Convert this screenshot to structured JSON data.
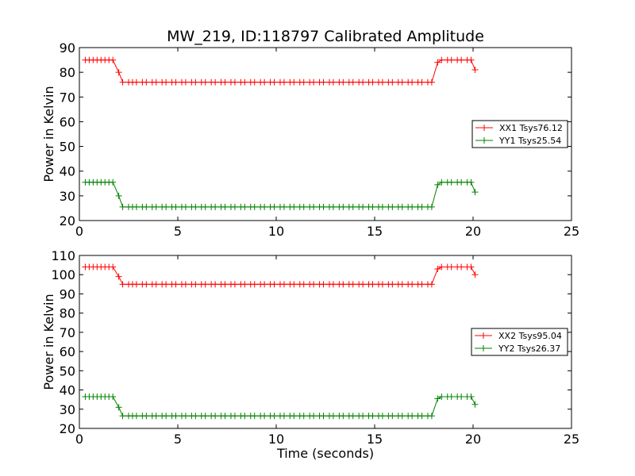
{
  "figure": {
    "title": "MW_219, ID:118797 Calibrated Amplitude"
  },
  "colors": {
    "red": "#ff0000",
    "green": "#008000",
    "axis": "#000000"
  },
  "chart_data": [
    {
      "type": "line",
      "xlabel": "",
      "ylabel": "Power in Kelvin",
      "xlim": [
        0,
        25
      ],
      "ylim": [
        20,
        90
      ],
      "xticks": [
        0,
        5,
        10,
        15,
        20,
        25
      ],
      "yticks": [
        20,
        30,
        40,
        50,
        60,
        70,
        80,
        90
      ],
      "legend_position": "center-right",
      "series": [
        {
          "name": "XX1 Tsys76.12",
          "color": "#ff0000",
          "x": [
            0.3,
            0.5,
            0.7,
            0.9,
            1.1,
            1.3,
            1.5,
            1.7,
            2.0,
            2.2,
            2.5,
            2.7,
            2.9,
            3.2,
            3.4,
            3.7,
            3.9,
            4.2,
            4.4,
            4.7,
            4.9,
            5.2,
            5.4,
            5.7,
            5.9,
            6.2,
            6.4,
            6.7,
            6.9,
            7.2,
            7.4,
            7.7,
            7.9,
            8.2,
            8.4,
            8.7,
            8.9,
            9.2,
            9.4,
            9.7,
            9.9,
            10.2,
            10.4,
            10.7,
            10.9,
            11.2,
            11.4,
            11.7,
            11.9,
            12.2,
            12.4,
            12.7,
            12.9,
            13.2,
            13.4,
            13.7,
            13.9,
            14.2,
            14.4,
            14.7,
            14.9,
            15.2,
            15.4,
            15.7,
            15.9,
            16.2,
            16.4,
            16.7,
            16.9,
            17.2,
            17.4,
            17.7,
            17.9,
            18.2,
            18.4,
            18.7,
            18.9,
            19.2,
            19.4,
            19.7,
            19.9,
            20.1
          ],
          "values": [
            85,
            85,
            85,
            85,
            85,
            85,
            85,
            85,
            80,
            76,
            76,
            76,
            76,
            76,
            76,
            76,
            76,
            76,
            76,
            76,
            76,
            76,
            76,
            76,
            76,
            76,
            76,
            76,
            76,
            76,
            76,
            76,
            76,
            76,
            76,
            76,
            76,
            76,
            76,
            76,
            76,
            76,
            76,
            76,
            76,
            76,
            76,
            76,
            76,
            76,
            76,
            76,
            76,
            76,
            76,
            76,
            76,
            76,
            76,
            76,
            76,
            76,
            76,
            76,
            76,
            76,
            76,
            76,
            76,
            76,
            76,
            76,
            76,
            84,
            85,
            85,
            85,
            85,
            85,
            85,
            85,
            81
          ]
        },
        {
          "name": "YY1 Tsys25.54",
          "color": "#008000",
          "x": [
            0.3,
            0.5,
            0.7,
            0.9,
            1.1,
            1.3,
            1.5,
            1.7,
            2.0,
            2.2,
            2.5,
            2.7,
            2.9,
            3.2,
            3.4,
            3.7,
            3.9,
            4.2,
            4.4,
            4.7,
            4.9,
            5.2,
            5.4,
            5.7,
            5.9,
            6.2,
            6.4,
            6.7,
            6.9,
            7.2,
            7.4,
            7.7,
            7.9,
            8.2,
            8.4,
            8.7,
            8.9,
            9.2,
            9.4,
            9.7,
            9.9,
            10.2,
            10.4,
            10.7,
            10.9,
            11.2,
            11.4,
            11.7,
            11.9,
            12.2,
            12.4,
            12.7,
            12.9,
            13.2,
            13.4,
            13.7,
            13.9,
            14.2,
            14.4,
            14.7,
            14.9,
            15.2,
            15.4,
            15.7,
            15.9,
            16.2,
            16.4,
            16.7,
            16.9,
            17.2,
            17.4,
            17.7,
            17.9,
            18.2,
            18.4,
            18.7,
            18.9,
            19.2,
            19.4,
            19.7,
            19.9,
            20.1
          ],
          "values": [
            35.5,
            35.5,
            35.5,
            35.5,
            35.5,
            35.5,
            35.5,
            35.5,
            30,
            25.5,
            25.5,
            25.5,
            25.5,
            25.5,
            25.5,
            25.5,
            25.5,
            25.5,
            25.5,
            25.5,
            25.5,
            25.5,
            25.5,
            25.5,
            25.5,
            25.5,
            25.5,
            25.5,
            25.5,
            25.5,
            25.5,
            25.5,
            25.5,
            25.5,
            25.5,
            25.5,
            25.5,
            25.5,
            25.5,
            25.5,
            25.5,
            25.5,
            25.5,
            25.5,
            25.5,
            25.5,
            25.5,
            25.5,
            25.5,
            25.5,
            25.5,
            25.5,
            25.5,
            25.5,
            25.5,
            25.5,
            25.5,
            25.5,
            25.5,
            25.5,
            25.5,
            25.5,
            25.5,
            25.5,
            25.5,
            25.5,
            25.5,
            25.5,
            25.5,
            25.5,
            25.5,
            25.5,
            25.5,
            34.5,
            35.5,
            35.5,
            35.5,
            35.5,
            35.5,
            35.5,
            35.5,
            31.5
          ]
        }
      ]
    },
    {
      "type": "line",
      "xlabel": "Time (seconds)",
      "ylabel": "Power in Kelvin",
      "xlim": [
        0,
        25
      ],
      "ylim": [
        20,
        110
      ],
      "xticks": [
        0,
        5,
        10,
        15,
        20,
        25
      ],
      "yticks": [
        20,
        30,
        40,
        50,
        60,
        70,
        80,
        90,
        100,
        110
      ],
      "legend_position": "center-right",
      "series": [
        {
          "name": "XX2 Tsys95.04",
          "color": "#ff0000",
          "x": [
            0.3,
            0.5,
            0.7,
            0.9,
            1.1,
            1.3,
            1.5,
            1.7,
            2.0,
            2.2,
            2.5,
            2.7,
            2.9,
            3.2,
            3.4,
            3.7,
            3.9,
            4.2,
            4.4,
            4.7,
            4.9,
            5.2,
            5.4,
            5.7,
            5.9,
            6.2,
            6.4,
            6.7,
            6.9,
            7.2,
            7.4,
            7.7,
            7.9,
            8.2,
            8.4,
            8.7,
            8.9,
            9.2,
            9.4,
            9.7,
            9.9,
            10.2,
            10.4,
            10.7,
            10.9,
            11.2,
            11.4,
            11.7,
            11.9,
            12.2,
            12.4,
            12.7,
            12.9,
            13.2,
            13.4,
            13.7,
            13.9,
            14.2,
            14.4,
            14.7,
            14.9,
            15.2,
            15.4,
            15.7,
            15.9,
            16.2,
            16.4,
            16.7,
            16.9,
            17.2,
            17.4,
            17.7,
            17.9,
            18.2,
            18.4,
            18.7,
            18.9,
            19.2,
            19.4,
            19.7,
            19.9,
            20.1
          ],
          "values": [
            104,
            104,
            104,
            104,
            104,
            104,
            104,
            104,
            99,
            95,
            95,
            95,
            95,
            95,
            95,
            95,
            95,
            95,
            95,
            95,
            95,
            95,
            95,
            95,
            95,
            95,
            95,
            95,
            95,
            95,
            95,
            95,
            95,
            95,
            95,
            95,
            95,
            95,
            95,
            95,
            95,
            95,
            95,
            95,
            95,
            95,
            95,
            95,
            95,
            95,
            95,
            95,
            95,
            95,
            95,
            95,
            95,
            95,
            95,
            95,
            95,
            95,
            95,
            95,
            95,
            95,
            95,
            95,
            95,
            95,
            95,
            95,
            95,
            103,
            104,
            104,
            104,
            104,
            104,
            104,
            104,
            100
          ]
        },
        {
          "name": "YY2 Tsys26.37",
          "color": "#008000",
          "x": [
            0.3,
            0.5,
            0.7,
            0.9,
            1.1,
            1.3,
            1.5,
            1.7,
            2.0,
            2.2,
            2.5,
            2.7,
            2.9,
            3.2,
            3.4,
            3.7,
            3.9,
            4.2,
            4.4,
            4.7,
            4.9,
            5.2,
            5.4,
            5.7,
            5.9,
            6.2,
            6.4,
            6.7,
            6.9,
            7.2,
            7.4,
            7.7,
            7.9,
            8.2,
            8.4,
            8.7,
            8.9,
            9.2,
            9.4,
            9.7,
            9.9,
            10.2,
            10.4,
            10.7,
            10.9,
            11.2,
            11.4,
            11.7,
            11.9,
            12.2,
            12.4,
            12.7,
            12.9,
            13.2,
            13.4,
            13.7,
            13.9,
            14.2,
            14.4,
            14.7,
            14.9,
            15.2,
            15.4,
            15.7,
            15.9,
            16.2,
            16.4,
            16.7,
            16.9,
            17.2,
            17.4,
            17.7,
            17.9,
            18.2,
            18.4,
            18.7,
            18.9,
            19.2,
            19.4,
            19.7,
            19.9,
            20.1
          ],
          "values": [
            36.5,
            36.5,
            36.5,
            36.5,
            36.5,
            36.5,
            36.5,
            36.5,
            31,
            26.5,
            26.5,
            26.5,
            26.5,
            26.5,
            26.5,
            26.5,
            26.5,
            26.5,
            26.5,
            26.5,
            26.5,
            26.5,
            26.5,
            26.5,
            26.5,
            26.5,
            26.5,
            26.5,
            26.5,
            26.5,
            26.5,
            26.5,
            26.5,
            26.5,
            26.5,
            26.5,
            26.5,
            26.5,
            26.5,
            26.5,
            26.5,
            26.5,
            26.5,
            26.5,
            26.5,
            26.5,
            26.5,
            26.5,
            26.5,
            26.5,
            26.5,
            26.5,
            26.5,
            26.5,
            26.5,
            26.5,
            26.5,
            26.5,
            26.5,
            26.5,
            26.5,
            26.5,
            26.5,
            26.5,
            26.5,
            26.5,
            26.5,
            26.5,
            26.5,
            26.5,
            26.5,
            26.5,
            26.5,
            35.5,
            36.5,
            36.5,
            36.5,
            36.5,
            36.5,
            36.5,
            36.5,
            32.5
          ]
        }
      ]
    }
  ]
}
